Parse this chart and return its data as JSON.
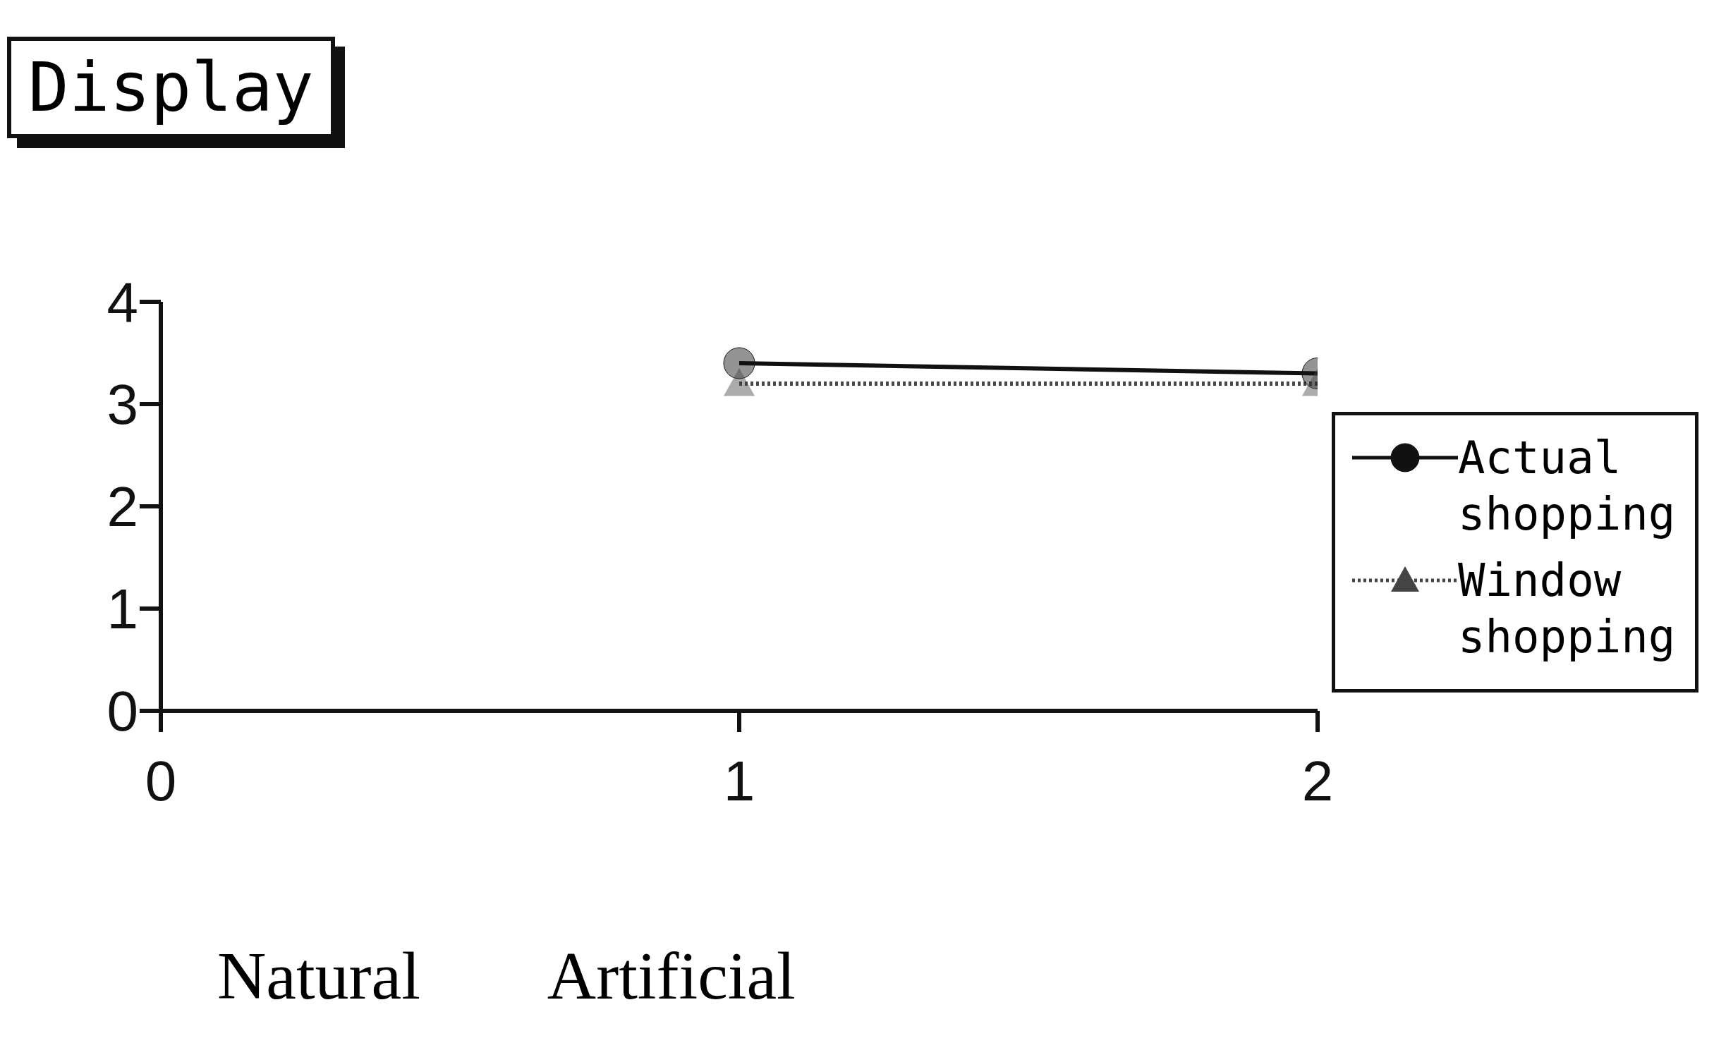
{
  "chart_data": {
    "type": "line",
    "title": "Display",
    "x": [
      1,
      2
    ],
    "series": [
      {
        "name": "Actual shopping",
        "color": "#111111",
        "values": [
          3.4,
          3.3
        ],
        "marker": "circle",
        "line_style": "solid"
      },
      {
        "name": "Window shopping",
        "color": "#444444",
        "values": [
          3.2,
          3.2
        ],
        "marker": "triangle",
        "line_style": "dotted"
      }
    ],
    "xlim": [
      0,
      2
    ],
    "xticks": [
      0,
      1,
      2
    ],
    "ylim": [
      0,
      4
    ],
    "yticks": [
      0,
      1,
      2,
      3,
      4
    ],
    "grid": false,
    "legend": "right",
    "annotations": [
      "Natural",
      "Artificial"
    ]
  }
}
